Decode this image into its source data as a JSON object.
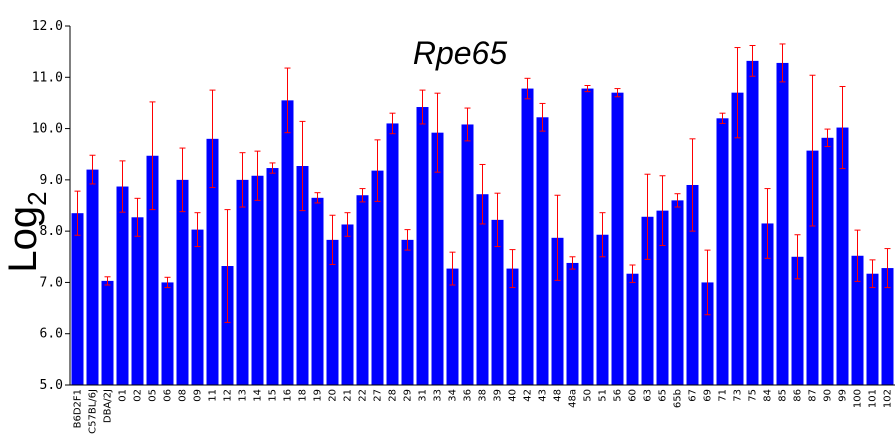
{
  "chart_data": {
    "type": "bar",
    "title": "Rpe65",
    "ylabel": "Log",
    "ylabel_subscript": "2",
    "xlabel": "",
    "ylim": [
      5.0,
      12.0
    ],
    "yticks": [
      "5.0",
      "6.0",
      "7.0",
      "8.0",
      "9.0",
      "10.0",
      "11.0",
      "12.0"
    ],
    "grid": false,
    "bar_color": "#0000ff",
    "error_color": "#ff0000",
    "categories": [
      "B6D2F1",
      "C57BL/6J",
      "DBA/2J",
      "01",
      "02",
      "05",
      "06",
      "08",
      "09",
      "11",
      "12",
      "13",
      "14",
      "15",
      "16",
      "18",
      "19",
      "20",
      "21",
      "22",
      "27",
      "28",
      "29",
      "31",
      "33",
      "34",
      "36",
      "38",
      "39",
      "40",
      "42",
      "43",
      "48",
      "48a",
      "50",
      "51",
      "56",
      "60",
      "63",
      "65",
      "65b",
      "67",
      "69",
      "71",
      "73",
      "75",
      "84",
      "85",
      "86",
      "87",
      "90",
      "99",
      "100",
      "101",
      "102"
    ],
    "values": [
      8.35,
      9.2,
      7.03,
      8.87,
      8.27,
      9.47,
      7.0,
      9.0,
      8.03,
      9.8,
      7.32,
      9.0,
      9.08,
      9.23,
      10.55,
      9.27,
      8.65,
      7.83,
      8.13,
      8.7,
      9.18,
      10.1,
      7.83,
      10.42,
      9.92,
      7.27,
      10.08,
      8.72,
      8.22,
      7.27,
      10.78,
      10.22,
      7.87,
      7.38,
      10.78,
      7.93,
      10.7,
      7.17,
      8.28,
      8.4,
      8.6,
      8.9,
      7.0,
      10.2,
      10.7,
      11.32,
      8.15,
      11.28,
      7.5,
      9.57,
      9.82,
      10.02,
      7.52,
      7.17,
      7.28
    ],
    "errors": [
      0.43,
      0.28,
      0.08,
      0.5,
      0.37,
      1.05,
      0.1,
      0.62,
      0.33,
      0.95,
      1.1,
      0.53,
      0.48,
      0.1,
      0.63,
      0.87,
      0.1,
      0.48,
      0.23,
      0.13,
      0.6,
      0.2,
      0.2,
      0.33,
      0.77,
      0.32,
      0.32,
      0.58,
      0.52,
      0.37,
      0.2,
      0.27,
      0.83,
      0.12,
      0.06,
      0.43,
      0.08,
      0.17,
      0.83,
      0.68,
      0.13,
      0.9,
      0.63,
      0.1,
      0.88,
      0.3,
      0.68,
      0.37,
      0.43,
      1.47,
      0.17,
      0.8,
      0.5,
      0.27,
      0.38
    ]
  }
}
